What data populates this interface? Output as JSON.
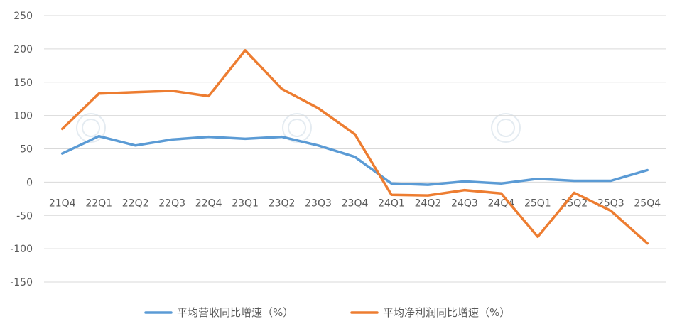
{
  "chart_data": {
    "type": "line",
    "title": "",
    "xlabel": "",
    "ylabel": "",
    "categories": [
      "21Q4",
      "22Q1",
      "22Q2",
      "22Q3",
      "22Q4",
      "23Q1",
      "23Q2",
      "23Q3",
      "23Q4",
      "24Q1",
      "24Q2",
      "24Q3",
      "24Q4",
      "25Q1",
      "25Q2",
      "25Q3",
      "25Q4"
    ],
    "yticks": [
      250,
      200,
      150,
      100,
      50,
      0,
      -50,
      -100,
      -150
    ],
    "ylim": [
      -150,
      250
    ],
    "grid": true,
    "legend_position": "bottom",
    "series": [
      {
        "name": "平均营收同比增速（%）",
        "color": "#5b9bd5",
        "values": [
          43,
          69,
          55,
          64,
          68,
          65,
          68,
          55,
          38,
          -2,
          -4,
          1,
          -2,
          5,
          2,
          2,
          18
        ]
      },
      {
        "name": "平均净利润同比增速（%）",
        "color": "#ed7d31",
        "values": [
          80,
          133,
          135,
          137,
          129,
          198,
          140,
          111,
          72,
          -19,
          -20,
          -12,
          -17,
          -82,
          -16,
          -43,
          -92
        ]
      }
    ]
  }
}
